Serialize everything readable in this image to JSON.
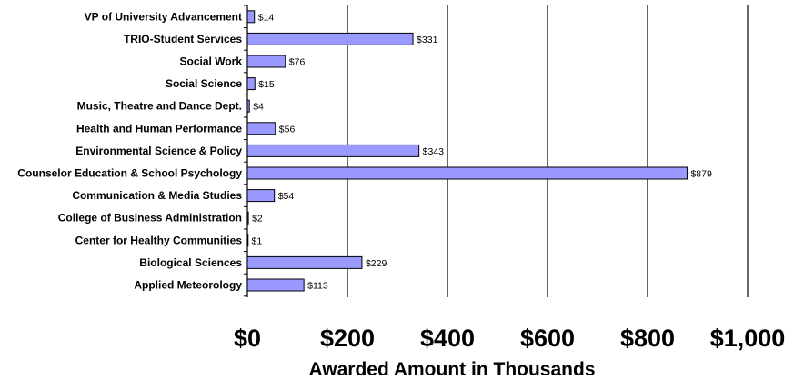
{
  "chart_data": {
    "type": "bar",
    "orientation": "horizontal",
    "categories": [
      "VP of University Advancement",
      "TRIO-Student Services",
      "Social Work",
      "Social Science",
      "Music, Theatre and Dance Dept.",
      "Health and Human Performance",
      "Environmental Science & Policy",
      "Counselor Education & School Psychology",
      "Communication & Media Studies",
      "College of Business Administration",
      "Center for Healthy Communities",
      "Biological Sciences",
      "Applied Meteorology"
    ],
    "values": [
      14,
      331,
      76,
      15,
      4,
      56,
      343,
      879,
      54,
      2,
      1,
      229,
      113
    ],
    "data_labels": [
      "$14",
      "$331",
      "$76",
      "$15",
      "$4",
      "$56",
      "$343",
      "$879",
      "$54",
      "$2",
      "$1",
      "$229",
      "$113"
    ],
    "xlabel": "Awarded Amount in Thousands",
    "ylabel": "",
    "title": "",
    "xlim": [
      0,
      1000
    ],
    "x_ticks": [
      0,
      200,
      400,
      600,
      800,
      1000
    ],
    "x_tick_labels": [
      "$0",
      "$200",
      "$400",
      "$600",
      "$800",
      "$1,000"
    ],
    "grid": "vertical",
    "legend": "none",
    "bar_color": "#9999ff",
    "bar_edge_color": "#000000"
  }
}
